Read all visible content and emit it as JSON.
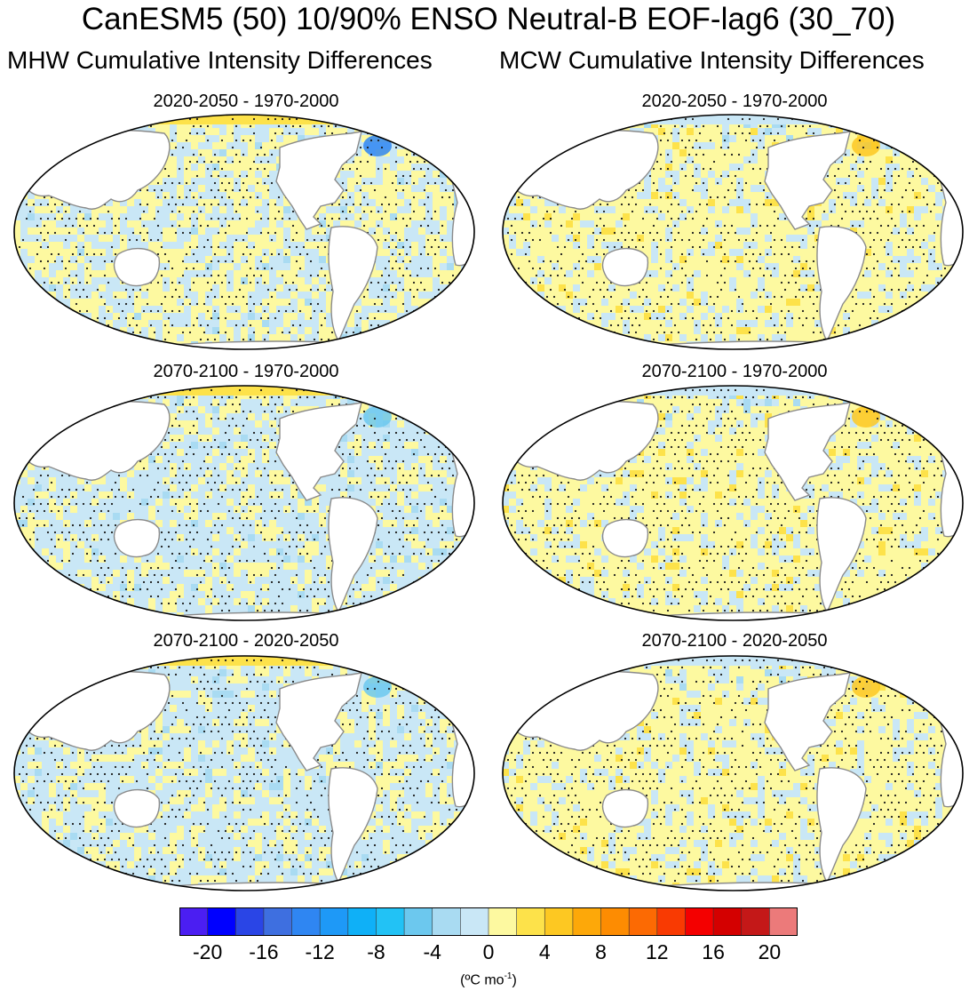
{
  "title": "CanESM5 (50) 10/90% ENSO Neutral-B EOF-lag6 (30_70)",
  "columns": {
    "left": "MHW Cumulative Intensity Differences",
    "right": "MCW Cumulative Intensity Differences"
  },
  "panels": [
    {
      "title": "2020-2050 - 1970-2000",
      "column": "MHW",
      "dominant": "mixed-yellow-blue"
    },
    {
      "title": "2020-2050 - 1970-2000",
      "column": "MCW",
      "dominant": "mostly-yellow"
    },
    {
      "title": "2070-2100 - 1970-2000",
      "column": "MHW",
      "dominant": "mostly-blue"
    },
    {
      "title": "2070-2100 - 1970-2000",
      "column": "MCW",
      "dominant": "mostly-yellow"
    },
    {
      "title": "2070-2100 - 2020-2050",
      "column": "MHW",
      "dominant": "mostly-blue"
    },
    {
      "title": "2070-2100 - 2020-2050",
      "column": "MCW",
      "dominant": "mostly-yellow"
    }
  ],
  "chart_data": {
    "type": "heatmap",
    "description": "Six global map panels (Robinson-like projection) showing cumulative intensity differences with stippling for significance",
    "colorbar": {
      "colors": [
        "#4b1ef2",
        "#0000ff",
        "#2a45e6",
        "#3e6fe0",
        "#2f86f2",
        "#1e99f7",
        "#0fb0f7",
        "#22c2f5",
        "#6cc8ee",
        "#a9dbf2",
        "#c9e7f6",
        "#fdf9a0",
        "#fde24a",
        "#fdc822",
        "#fda809",
        "#fd8c02",
        "#fc6a03",
        "#f93a02",
        "#f40000",
        "#d40000",
        "#c41818",
        "#ec7a7a"
      ],
      "tick_labels": [
        "-20",
        "-16",
        "-12",
        "-8",
        "-4",
        "0",
        "4",
        "8",
        "12",
        "16",
        "20"
      ],
      "range": [
        -22,
        22
      ],
      "units_main": "(ºC mo",
      "units_sup": "-1",
      "units_end": ")"
    }
  }
}
